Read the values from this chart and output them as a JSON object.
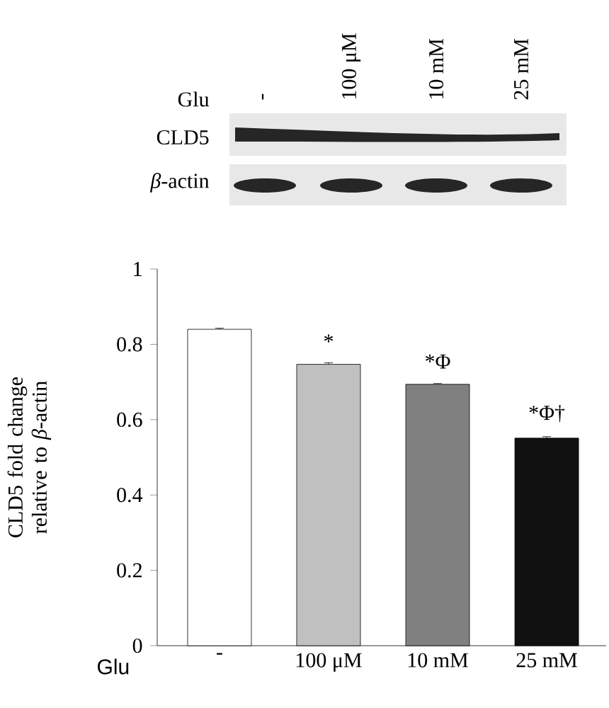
{
  "chart_data": {
    "type": "bar",
    "categories": [
      "-",
      "100 μM",
      "10 mM",
      "25 mM"
    ],
    "values": [
      0.84,
      0.747,
      0.694,
      0.551
    ],
    "errors": [
      0.003,
      0.004,
      0.002,
      0.004
    ],
    "colors": [
      "#ffffff",
      "#c0c0c0",
      "#808080",
      "#111111"
    ],
    "xlabel": "Glu",
    "ylabel": "CLD5 fold change relative to *β*-actin",
    "ylim": [
      0,
      1
    ],
    "yticks": [
      0,
      0.2,
      0.4,
      0.6,
      0.8,
      1
    ],
    "grid": false,
    "annotations": [
      "Glu",
      "-",
      "100 μM",
      "10 mM",
      "25 mM",
      "CLD5",
      "*β*-actin",
      {
        "text": "*",
        "x": "100 μM",
        "y": 0.747
      },
      {
        "text": "*Φ",
        "x": "10 mM",
        "y": 0.694
      },
      {
        "text": "*Φ†",
        "x": "25 mM",
        "y": 0.551
      }
    ]
  }
}
